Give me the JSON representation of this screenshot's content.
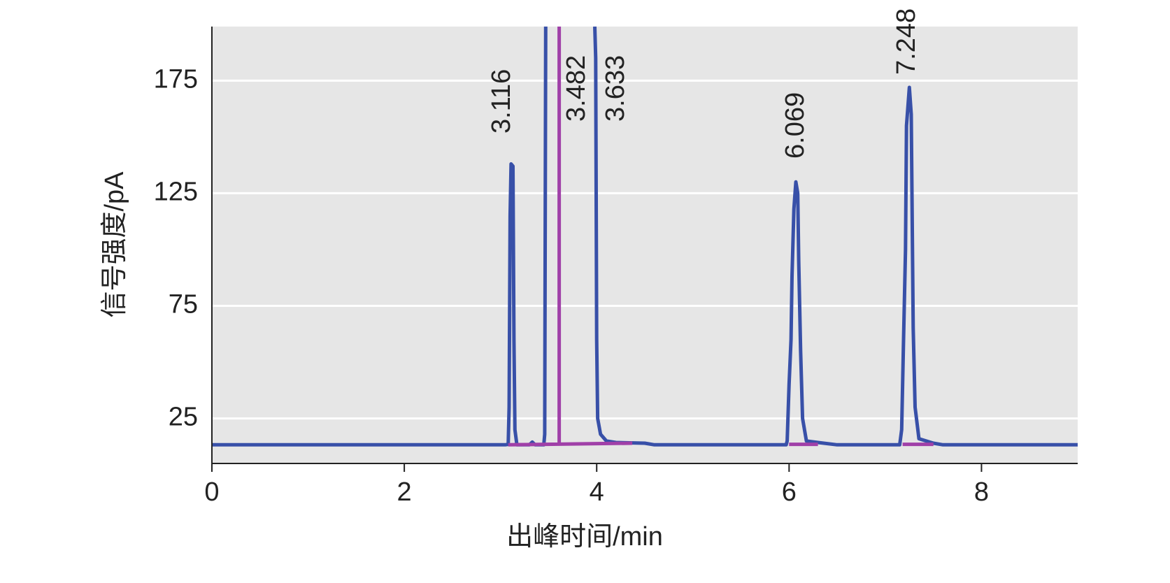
{
  "chart_data": {
    "type": "line",
    "xlabel": "出峰时间/min",
    "ylabel": "信号强度/pA",
    "xlim": [
      0,
      9
    ],
    "ylim": [
      5,
      199
    ],
    "xticks": [
      0,
      2,
      4,
      6,
      8
    ],
    "yticks": [
      25,
      75,
      125,
      175
    ],
    "grid": true,
    "annotations": [
      "3.116",
      "3.482",
      "3.633",
      "6.069",
      "7.248"
    ],
    "series": [
      {
        "color": "#3850a8",
        "x": [
          0,
          3.05,
          3.08,
          3.09,
          3.1,
          3.11,
          3.13,
          3.14,
          3.15,
          3.17,
          3.3,
          3.33,
          3.36,
          3.45,
          3.46,
          3.47,
          3.47,
          3.98,
          3.99,
          4.0,
          4.01,
          4.04,
          4.1,
          4.2,
          4.5,
          4.6,
          5.97,
          5.98,
          6.0,
          6.02,
          6.03,
          6.05,
          6.07,
          6.09,
          6.1,
          6.12,
          6.14,
          6.18,
          6.3,
          6.5,
          7.15,
          7.17,
          7.19,
          7.21,
          7.22,
          7.25,
          7.27,
          7.29,
          7.31,
          7.35,
          7.5,
          7.6,
          9
        ],
        "values": [
          13.3,
          13.3,
          13.5,
          30,
          115,
          138,
          137,
          60,
          20,
          13.3,
          13.3,
          14.5,
          13.3,
          13.3,
          18,
          199,
          null,
          199,
          185,
          60,
          25,
          18,
          15,
          14.3,
          14,
          13.3,
          13.3,
          15,
          40,
          60,
          88,
          118,
          130,
          125,
          95,
          55,
          25,
          15,
          14.3,
          13.3,
          13.3,
          20,
          60,
          100,
          155,
          172,
          160,
          65,
          30,
          16,
          14,
          13.3,
          13.3
        ]
      },
      {
        "color": "#a040a8",
        "x": [
          3.08,
          4.37,
          4.37,
          3.61,
          3.61,
          3.61,
          6.0,
          6.3,
          6.3,
          7.18,
          7.5
        ],
        "values": [
          13.3,
          14.0,
          null,
          13.5,
          199,
          null,
          13.5,
          13.5,
          null,
          13.5,
          13.5
        ]
      }
    ]
  }
}
